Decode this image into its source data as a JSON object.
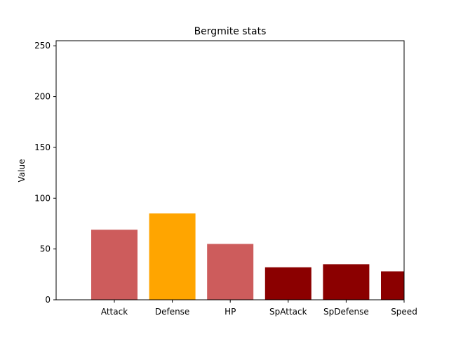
{
  "chart_data": {
    "type": "bar",
    "title": "Bergmite stats",
    "xlabel": "",
    "ylabel": "Value",
    "categories": [
      "Attack",
      "Defense",
      "HP",
      "SpAttack",
      "SpDefense",
      "Speed"
    ],
    "values": [
      69,
      85,
      55,
      32,
      35,
      28
    ],
    "colors": [
      "#cd5c5c",
      "#ffa500",
      "#cd5c5c",
      "#8b0000",
      "#8b0000",
      "#8b0000"
    ],
    "ylim": [
      0,
      255
    ],
    "yticks": [
      0,
      50,
      100,
      150,
      200,
      250
    ],
    "grid": false
  }
}
